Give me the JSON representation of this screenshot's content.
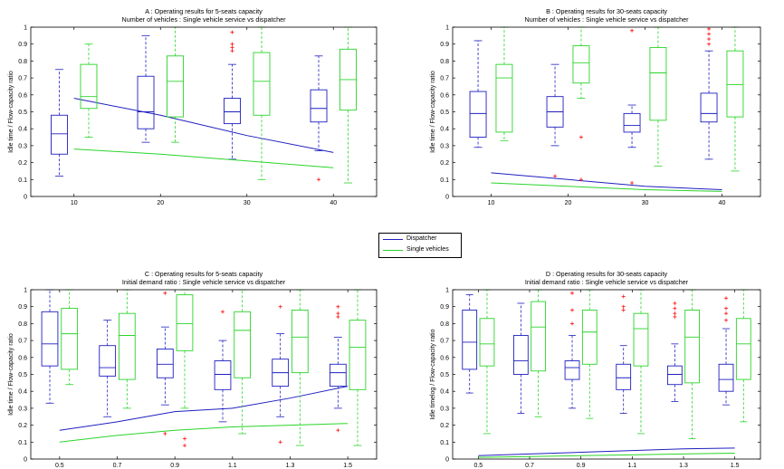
{
  "legend": {
    "dispatcher": {
      "label": "Dispatcher",
      "color": "#1f1fbf"
    },
    "single": {
      "label": "Single vehicles",
      "color": "#2ad42a"
    }
  },
  "chart_data": [
    {
      "type": "box",
      "title": "A : Operating results for 5-seats capacity",
      "subtitle": "Number of vehicles : Single vehicle service vs dispatcher",
      "ylabel": "Idle time / Flow-capacity ratio",
      "xlabel": "",
      "categories": [
        "10",
        "20",
        "30",
        "40"
      ],
      "ylim": [
        0,
        1
      ],
      "yticks": [
        0,
        0.1,
        0.2,
        0.3,
        0.4,
        0.5,
        0.6,
        0.7,
        0.8,
        0.9,
        1
      ],
      "series": [
        {
          "key": "dispatcher",
          "boxes": [
            {
              "wl": 0.12,
              "q1": 0.25,
              "med": 0.37,
              "q3": 0.48,
              "wh": 0.75,
              "outliers": []
            },
            {
              "wl": 0.32,
              "q1": 0.4,
              "med": 0.5,
              "q3": 0.71,
              "wh": 0.95,
              "outliers": []
            },
            {
              "wl": 0.22,
              "q1": 0.43,
              "med": 0.5,
              "q3": 0.58,
              "wh": 0.78,
              "outliers": [
                0.86,
                0.88,
                0.9,
                0.97
              ]
            },
            {
              "wl": 0.27,
              "q1": 0.44,
              "med": 0.52,
              "q3": 0.63,
              "wh": 0.83,
              "outliers": [
                0.1
              ]
            }
          ],
          "trend": [
            0.58,
            0.48,
            0.36,
            0.26
          ]
        },
        {
          "key": "single",
          "boxes": [
            {
              "wl": 0.35,
              "q1": 0.52,
              "med": 0.59,
              "q3": 0.78,
              "wh": 0.9,
              "outliers": []
            },
            {
              "wl": 0.32,
              "q1": 0.47,
              "med": 0.68,
              "q3": 0.83,
              "wh": 1.0,
              "outliers": []
            },
            {
              "wl": 0.1,
              "q1": 0.48,
              "med": 0.68,
              "q3": 0.85,
              "wh": 1.0,
              "outliers": []
            },
            {
              "wl": 0.08,
              "q1": 0.51,
              "med": 0.69,
              "q3": 0.87,
              "wh": 1.0,
              "outliers": []
            }
          ],
          "trend": [
            0.28,
            0.25,
            0.21,
            0.17
          ]
        }
      ]
    },
    {
      "type": "box",
      "title": "B : Operating results for 30-seats capacity",
      "subtitle": "Number of vehicles : Single vehicle service vs dispatcher",
      "ylabel": "Idle time / Flow-capacity ratio",
      "xlabel": "",
      "categories": [
        "10",
        "20",
        "30",
        "40"
      ],
      "ylim": [
        0,
        1
      ],
      "yticks": [
        0,
        0.1,
        0.2,
        0.3,
        0.4,
        0.5,
        0.6,
        0.7,
        0.8,
        0.9,
        1
      ],
      "series": [
        {
          "key": "dispatcher",
          "boxes": [
            {
              "wl": 0.29,
              "q1": 0.35,
              "med": 0.49,
              "q3": 0.62,
              "wh": 0.92,
              "outliers": []
            },
            {
              "wl": 0.3,
              "q1": 0.41,
              "med": 0.5,
              "q3": 0.59,
              "wh": 0.78,
              "outliers": [
                0.12
              ]
            },
            {
              "wl": 0.29,
              "q1": 0.38,
              "med": 0.42,
              "q3": 0.49,
              "wh": 0.54,
              "outliers": [
                0.08,
                0.98
              ]
            },
            {
              "wl": 0.22,
              "q1": 0.44,
              "med": 0.49,
              "q3": 0.61,
              "wh": 0.86,
              "outliers": [
                0.9,
                0.93,
                0.96,
                0.99
              ]
            }
          ],
          "trend": [
            0.14,
            0.1,
            0.06,
            0.04
          ]
        },
        {
          "key": "single",
          "boxes": [
            {
              "wl": 0.33,
              "q1": 0.38,
              "med": 0.7,
              "q3": 0.78,
              "wh": 1.0,
              "outliers": []
            },
            {
              "wl": 0.58,
              "q1": 0.67,
              "med": 0.79,
              "q3": 0.89,
              "wh": 1.0,
              "outliers": [
                0.35,
                0.1
              ]
            },
            {
              "wl": 0.18,
              "q1": 0.45,
              "med": 0.73,
              "q3": 0.88,
              "wh": 1.0,
              "outliers": []
            },
            {
              "wl": 0.15,
              "q1": 0.47,
              "med": 0.66,
              "q3": 0.86,
              "wh": 1.0,
              "outliers": []
            }
          ],
          "trend": [
            0.08,
            0.06,
            0.04,
            0.03
          ]
        }
      ]
    },
    {
      "type": "box",
      "title": "C : Operating results for 5-seats capacity",
      "subtitle": "Initial demand ratio : Single vehicle service vs dispatcher",
      "ylabel": "Idle time / Flow-capacity ratio",
      "xlabel": "",
      "categories": [
        "0.5",
        "0.7",
        "0.9",
        "1.1",
        "1.3",
        "1.5"
      ],
      "ylim": [
        0,
        1
      ],
      "yticks": [
        0,
        0.1,
        0.2,
        0.3,
        0.4,
        0.5,
        0.6,
        0.7,
        0.8,
        0.9,
        1
      ],
      "series": [
        {
          "key": "dispatcher",
          "boxes": [
            {
              "wl": 0.33,
              "q1": 0.55,
              "med": 0.68,
              "q3": 0.87,
              "wh": 1.0,
              "outliers": []
            },
            {
              "wl": 0.25,
              "q1": 0.49,
              "med": 0.54,
              "q3": 0.67,
              "wh": 0.82,
              "outliers": []
            },
            {
              "wl": 0.32,
              "q1": 0.48,
              "med": 0.56,
              "q3": 0.65,
              "wh": 0.78,
              "outliers": [
                0.98,
                0.15
              ]
            },
            {
              "wl": 0.22,
              "q1": 0.41,
              "med": 0.5,
              "q3": 0.58,
              "wh": 0.7,
              "outliers": [
                0.87
              ]
            },
            {
              "wl": 0.25,
              "q1": 0.43,
              "med": 0.51,
              "q3": 0.59,
              "wh": 0.74,
              "outliers": [
                0.9,
                0.1
              ]
            },
            {
              "wl": 0.3,
              "q1": 0.43,
              "med": 0.51,
              "q3": 0.56,
              "wh": 0.72,
              "outliers": [
                0.84,
                0.86,
                0.9,
                0.17
              ]
            }
          ],
          "trend": [
            0.17,
            0.22,
            0.28,
            0.3,
            0.36,
            0.43
          ]
        },
        {
          "key": "single",
          "boxes": [
            {
              "wl": 0.44,
              "q1": 0.53,
              "med": 0.74,
              "q3": 0.89,
              "wh": 1.0,
              "outliers": []
            },
            {
              "wl": 0.3,
              "q1": 0.47,
              "med": 0.73,
              "q3": 0.86,
              "wh": 1.0,
              "outliers": []
            },
            {
              "wl": 0.3,
              "q1": 0.64,
              "med": 0.8,
              "q3": 0.97,
              "wh": 1.0,
              "outliers": [
                0.08,
                0.12
              ]
            },
            {
              "wl": 0.15,
              "q1": 0.48,
              "med": 0.76,
              "q3": 0.87,
              "wh": 1.0,
              "outliers": []
            },
            {
              "wl": 0.08,
              "q1": 0.51,
              "med": 0.72,
              "q3": 0.88,
              "wh": 1.0,
              "outliers": []
            },
            {
              "wl": 0.08,
              "q1": 0.41,
              "med": 0.66,
              "q3": 0.82,
              "wh": 1.0,
              "outliers": []
            }
          ],
          "trend": [
            0.1,
            0.14,
            0.17,
            0.19,
            0.2,
            0.21
          ]
        }
      ]
    },
    {
      "type": "box",
      "title": "D : Operating results for 30-seats capacity",
      "subtitle": "Initial demand ratio : Single vehicle service vs dispatcher",
      "ylabel": "Idle timelog / Flow-capacity ratio",
      "xlabel": "",
      "categories": [
        "0.5",
        "0.7",
        "0.9",
        "1.1",
        "1.3",
        "1.5"
      ],
      "ylim": [
        0,
        1
      ],
      "yticks": [
        0,
        0.1,
        0.2,
        0.3,
        0.4,
        0.5,
        0.6,
        0.7,
        0.8,
        0.9,
        1
      ],
      "series": [
        {
          "key": "dispatcher",
          "boxes": [
            {
              "wl": 0.39,
              "q1": 0.53,
              "med": 0.69,
              "q3": 0.88,
              "wh": 0.97,
              "outliers": []
            },
            {
              "wl": 0.27,
              "q1": 0.5,
              "med": 0.58,
              "q3": 0.73,
              "wh": 0.92,
              "outliers": []
            },
            {
              "wl": 0.3,
              "q1": 0.47,
              "med": 0.54,
              "q3": 0.58,
              "wh": 0.73,
              "outliers": [
                0.8,
                0.88,
                0.98
              ]
            },
            {
              "wl": 0.27,
              "q1": 0.41,
              "med": 0.48,
              "q3": 0.56,
              "wh": 0.67,
              "outliers": [
                0.88,
                0.9,
                0.96
              ]
            },
            {
              "wl": 0.34,
              "q1": 0.44,
              "med": 0.5,
              "q3": 0.55,
              "wh": 0.68,
              "outliers": [
                0.84,
                0.86,
                0.89,
                0.92
              ]
            },
            {
              "wl": 0.32,
              "q1": 0.4,
              "med": 0.47,
              "q3": 0.56,
              "wh": 0.77,
              "outliers": [
                0.82,
                0.86,
                0.89,
                0.95
              ]
            }
          ],
          "trend": [
            0.02,
            0.03,
            0.04,
            0.05,
            0.06,
            0.065
          ]
        },
        {
          "key": "single",
          "boxes": [
            {
              "wl": 0.15,
              "q1": 0.55,
              "med": 0.68,
              "q3": 0.83,
              "wh": 1.0,
              "outliers": []
            },
            {
              "wl": 0.25,
              "q1": 0.52,
              "med": 0.78,
              "q3": 0.93,
              "wh": 1.0,
              "outliers": []
            },
            {
              "wl": 0.24,
              "q1": 0.56,
              "med": 0.75,
              "q3": 0.88,
              "wh": 1.0,
              "outliers": []
            },
            {
              "wl": 0.15,
              "q1": 0.55,
              "med": 0.77,
              "q3": 0.86,
              "wh": 1.0,
              "outliers": []
            },
            {
              "wl": 0.12,
              "q1": 0.45,
              "med": 0.72,
              "q3": 0.88,
              "wh": 1.0,
              "outliers": []
            },
            {
              "wl": 0.22,
              "q1": 0.47,
              "med": 0.68,
              "q3": 0.83,
              "wh": 1.0,
              "outliers": []
            }
          ],
          "trend": [
            0.01,
            0.015,
            0.02,
            0.025,
            0.03,
            0.035
          ]
        }
      ]
    }
  ]
}
